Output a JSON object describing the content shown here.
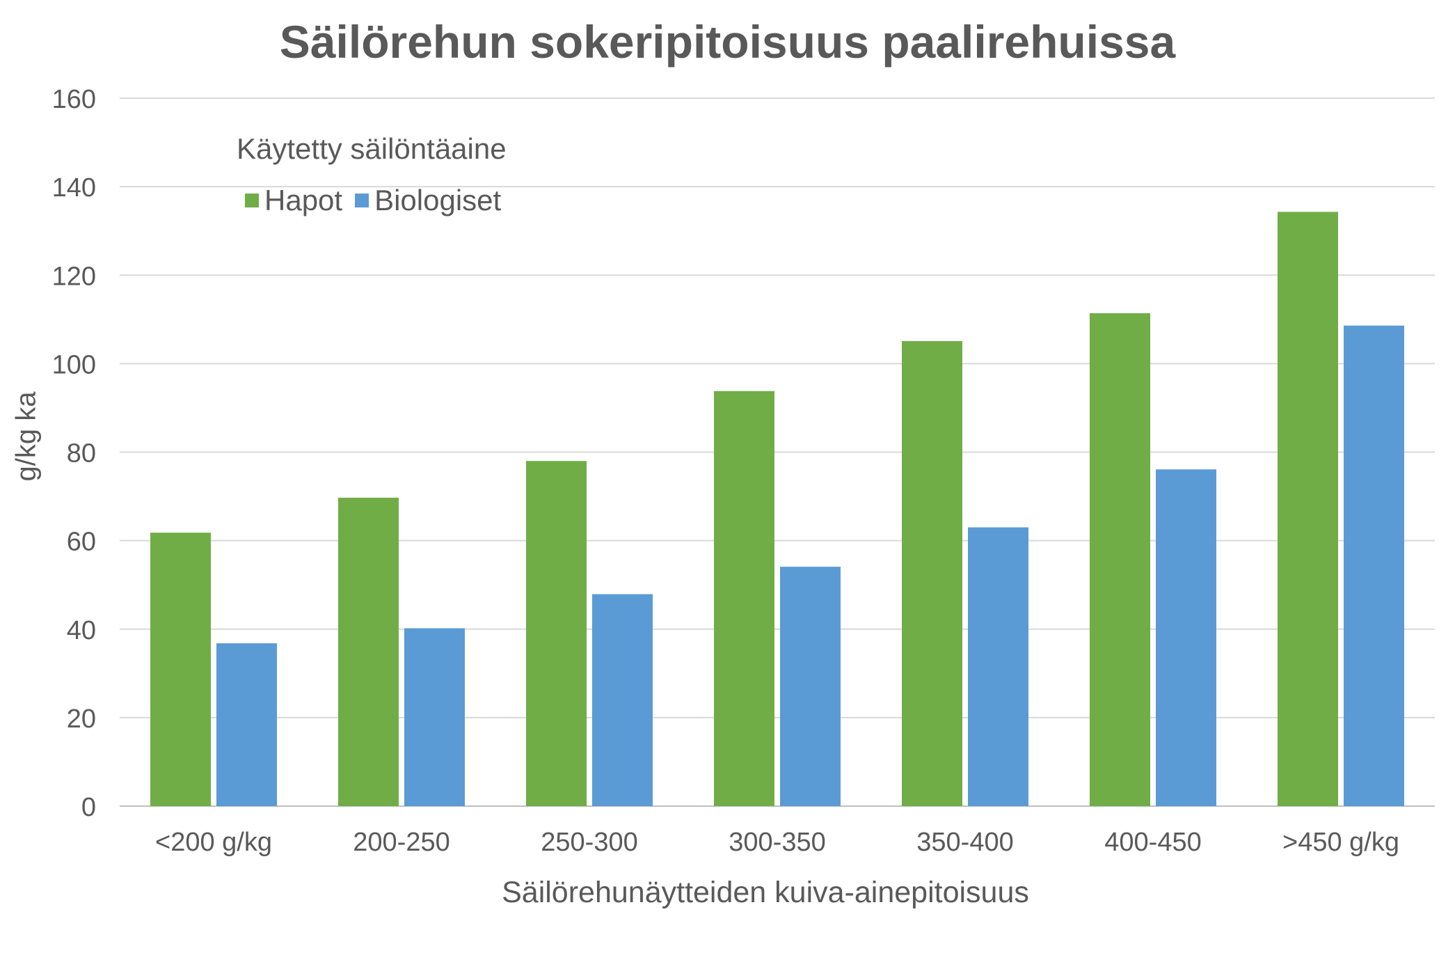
{
  "chart_data": {
    "type": "bar",
    "title": "Säilörehun sokeripitoisuus paalirehuissa",
    "xlabel": "Säilörehunäytteiden kuiva-ainepitoisuus",
    "ylabel": "g/kg ka",
    "ylim": [
      0,
      160
    ],
    "yticks": [
      "0",
      "20",
      "40",
      "60",
      "80",
      "100",
      "120",
      "140",
      "160"
    ],
    "grid": true,
    "legend_title": "Käytetty säilöntäaine",
    "legend_position": "top-left",
    "categories": [
      "<200 g/kg",
      "200-250",
      "250-300",
      "300-350",
      "350-400",
      "400-450",
      ">450 g/kg"
    ],
    "series": [
      {
        "name": "Hapot",
        "color": "#70AD47",
        "values": [
          61.8,
          69.7,
          78.0,
          93.8,
          105.1,
          111.4,
          134.3
        ]
      },
      {
        "name": "Biologiset",
        "color": "#5B9BD5",
        "values": [
          36.8,
          40.2,
          47.9,
          54.1,
          63.0,
          76.1,
          108.6
        ]
      }
    ]
  }
}
